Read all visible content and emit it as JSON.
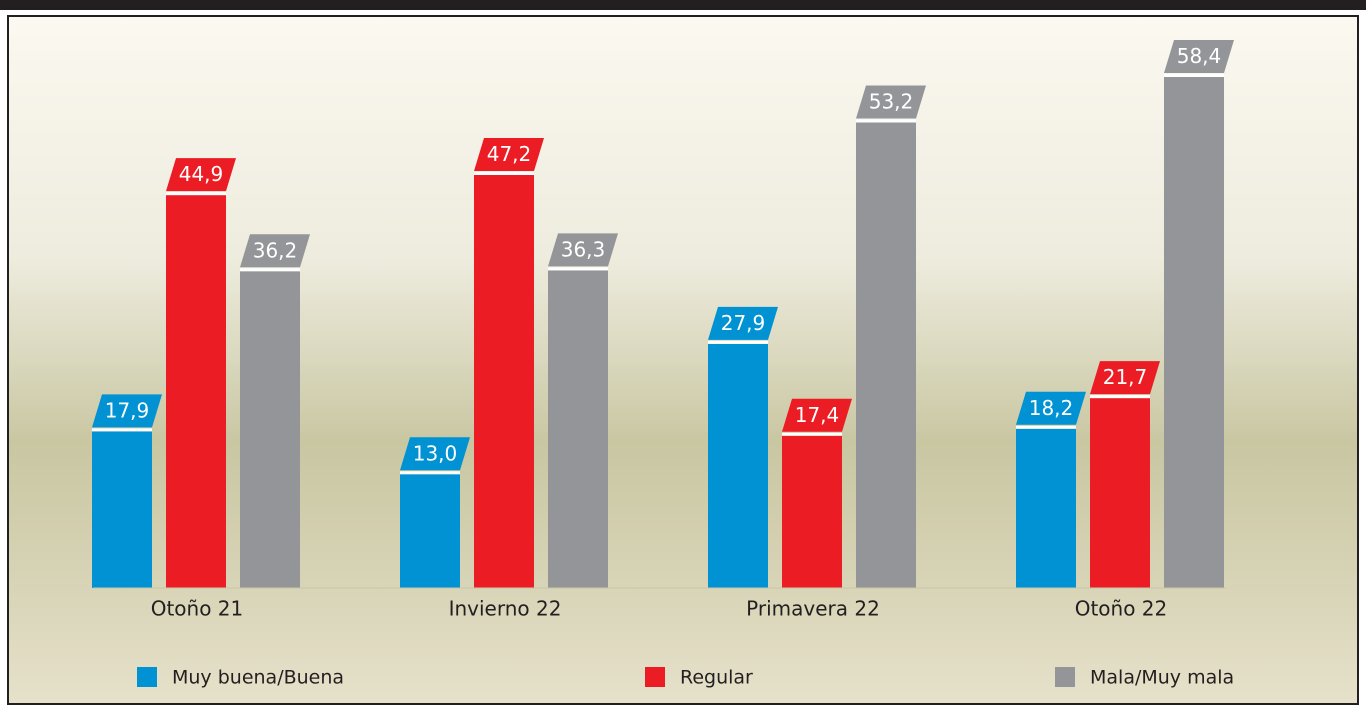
{
  "chart_data": {
    "type": "bar",
    "categories": [
      "Otoño 21",
      "Invierno 22",
      "Primavera 22",
      "Otoño 22"
    ],
    "series": [
      {
        "name": "Muy buena/Buena",
        "color": "#0092d2",
        "values": [
          17.9,
          13.0,
          27.9,
          18.2
        ],
        "value_labels": [
          "17,9",
          "13,0",
          "27,9",
          "18,2"
        ]
      },
      {
        "name": "Regular",
        "color": "#ec1c24",
        "values": [
          44.9,
          47.2,
          17.4,
          21.7
        ],
        "value_labels": [
          "44,9",
          "47,2",
          "17,4",
          "21,7"
        ]
      },
      {
        "name": "Mala/Muy mala",
        "color": "#939598",
        "values": [
          36.2,
          36.3,
          53.2,
          58.4
        ],
        "value_labels": [
          "36,2",
          "36,3",
          "53,2",
          "58,4"
        ]
      }
    ]
  }
}
